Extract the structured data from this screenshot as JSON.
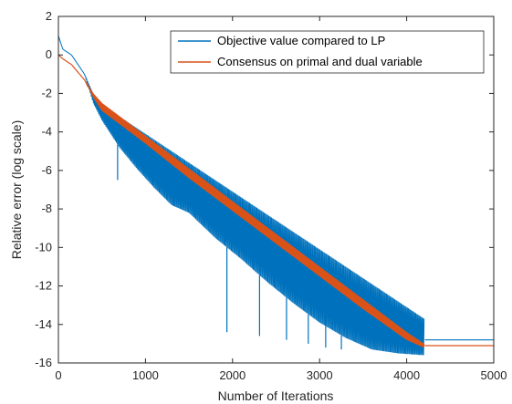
{
  "chart_data": {
    "type": "line",
    "title": "",
    "xlabel": "Number of Iterations",
    "ylabel": "Relative error (log scale)",
    "xlim": [
      0,
      5000
    ],
    "ylim": [
      -16,
      2
    ],
    "x_ticks": [
      0,
      1000,
      2000,
      3000,
      4000,
      5000
    ],
    "x_tick_labels": [
      "0",
      "1000",
      "2000",
      "3000",
      "4000",
      "5000"
    ],
    "y_ticks": [
      2,
      0,
      -2,
      -4,
      -6,
      -8,
      -10,
      -12,
      -14,
      -16
    ],
    "y_tick_labels": [
      "2",
      "0",
      "-2",
      "-4",
      "-6",
      "-8",
      "-10",
      "-12",
      "-14",
      "-16"
    ],
    "grid": false,
    "legend_position": "top-right",
    "series": [
      {
        "name": "Objective value compared to LP",
        "color": "#0072BD",
        "style": "oscillating-band",
        "x": [
          0,
          50,
          150,
          300,
          400,
          500,
          700,
          900,
          1100,
          1300,
          1500,
          1800,
          2100,
          2400,
          2700,
          3000,
          3300,
          3600,
          3900,
          4200,
          4210,
          5000
        ],
        "upper": [
          1.0,
          0.3,
          0.0,
          -1.0,
          -2.0,
          -2.6,
          -3.2,
          -3.8,
          -4.4,
          -5.0,
          -5.6,
          -6.5,
          -7.4,
          -8.3,
          -9.2,
          -10.1,
          -11.0,
          -11.9,
          -12.8,
          -13.7,
          -14.8,
          -14.8
        ],
        "lower": [
          1.0,
          0.3,
          0.0,
          -1.0,
          -2.5,
          -3.4,
          -4.8,
          -5.9,
          -6.9,
          -7.8,
          -8.2,
          -9.5,
          -10.6,
          -11.8,
          -12.9,
          -13.9,
          -14.7,
          -15.3,
          -15.5,
          -15.6,
          -14.8,
          -14.8
        ],
        "final_value": -14.8
      },
      {
        "name": "Consensus on primal and dual variable",
        "color": "#D95319",
        "style": "thin-band",
        "x": [
          0,
          50,
          150,
          300,
          400,
          500,
          1000,
          1500,
          2000,
          2500,
          3000,
          3500,
          4000,
          4200,
          4210,
          5000
        ],
        "upper": [
          0.0,
          -0.2,
          -0.5,
          -1.3,
          -2.0,
          -2.5,
          -4.2,
          -5.9,
          -7.6,
          -9.3,
          -11.0,
          -12.7,
          -14.4,
          -15.0,
          -15.1,
          -15.1
        ],
        "lower": [
          0.0,
          -0.2,
          -0.5,
          -1.3,
          -2.2,
          -2.9,
          -4.6,
          -6.4,
          -8.1,
          -9.8,
          -11.5,
          -13.2,
          -14.8,
          -15.2,
          -15.1,
          -15.1
        ],
        "final_value": -15.1
      }
    ],
    "annotations": [
      {
        "x": 680,
        "y": -6.5
      },
      {
        "x": 1935,
        "y": -14.4
      },
      {
        "x": 2310,
        "y": -14.6
      },
      {
        "x": 2620,
        "y": -14.8
      },
      {
        "x": 2870,
        "y": -15.0
      },
      {
        "x": 3070,
        "y": -15.2
      },
      {
        "x": 3250,
        "y": -15.3
      }
    ]
  }
}
